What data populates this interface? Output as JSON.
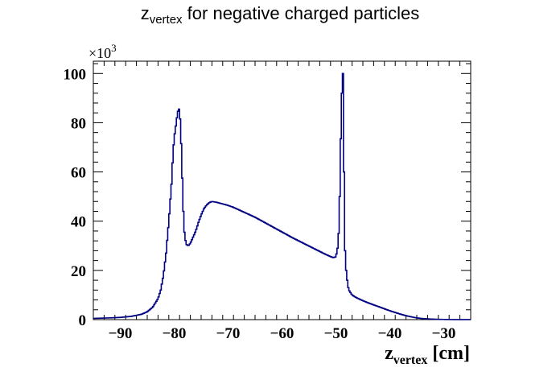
{
  "chart_data": {
    "type": "line",
    "title_main": "z",
    "title_sub": "vertex",
    "title_rest": " for negative charged particles",
    "xlabel_main": "z",
    "xlabel_sub": "vertex",
    "xlabel_rest": " [cm]",
    "y_multiplier_base": "×10",
    "y_multiplier_exp": "3",
    "xlim": [
      -95,
      -25
    ],
    "ylim": [
      0,
      105
    ],
    "x_ticks": [
      -90,
      -80,
      -70,
      -60,
      -50,
      -40,
      -30
    ],
    "x_tick_labels": [
      "−90",
      "−80",
      "−70",
      "−60",
      "−50",
      "−40",
      "−30"
    ],
    "y_ticks": [
      0,
      20,
      40,
      60,
      80,
      100
    ],
    "y_tick_labels": [
      "0",
      "20",
      "40",
      "60",
      "80",
      "100"
    ],
    "line_color": "#000080",
    "series": [
      {
        "x": [
          -95,
          -92,
          -90,
          -88,
          -86,
          -85,
          -84,
          -83,
          -82.5,
          -82,
          -81.5,
          -81,
          -80.5,
          -80.2,
          -80,
          -79.8,
          -79.5,
          -79.2,
          -79,
          -78.8,
          -78.6,
          -78.4,
          -78.2,
          -78,
          -77.7,
          -77.4,
          -77,
          -76.5,
          -76,
          -75.5,
          -75,
          -74.5,
          -74,
          -73.5,
          -73,
          -72.5,
          -72,
          -71,
          -70,
          -69,
          -68,
          -67,
          -66,
          -65,
          -64,
          -63,
          -62,
          -61,
          -60,
          -59,
          -58,
          -57,
          -56,
          -55,
          -54,
          -53,
          -52,
          -51,
          -50.5,
          -50,
          -49.7,
          -49.4,
          -49.2,
          -49,
          -48.8,
          -48.7,
          -48.6,
          -48.5,
          -48.4,
          -48.3,
          -48.2,
          -48,
          -47.8,
          -47.6,
          -47.3,
          -47,
          -46.5,
          -46,
          -45,
          -44,
          -43,
          -42,
          -41,
          -40,
          -39,
          -38,
          -37,
          -36,
          -35,
          -34,
          -33,
          -32,
          -31,
          -30,
          -29,
          -28,
          -27,
          -26,
          -25
        ],
        "y": [
          0.5,
          0.7,
          0.9,
          1.3,
          2.2,
          3.2,
          5.0,
          8.5,
          12,
          18,
          27,
          40,
          55,
          68,
          74,
          77,
          82,
          86,
          85,
          78,
          65,
          50,
          38,
          33,
          30.5,
          30,
          31,
          33.5,
          36,
          39.5,
          42.5,
          45,
          46.5,
          47.5,
          48,
          47.8,
          47.6,
          47,
          46.4,
          45.6,
          44.6,
          43.6,
          42.6,
          41.6,
          40.4,
          39.2,
          38,
          36.8,
          35.6,
          34.4,
          33.2,
          32.1,
          31,
          29.9,
          28.8,
          27.7,
          26.6,
          25.6,
          25.2,
          25.5,
          29,
          38,
          62,
          85,
          99,
          100,
          86,
          60,
          40,
          28,
          22,
          18,
          14,
          12,
          11,
          10,
          9.3,
          8.7,
          7.7,
          6.8,
          6.0,
          5.2,
          4.4,
          3.6,
          2.9,
          2.2,
          1.6,
          1.1,
          0.7,
          0.45,
          0.3,
          0.2,
          0.12,
          0.08,
          0.05,
          0.03,
          0.02,
          0.01,
          0.01
        ]
      }
    ]
  }
}
